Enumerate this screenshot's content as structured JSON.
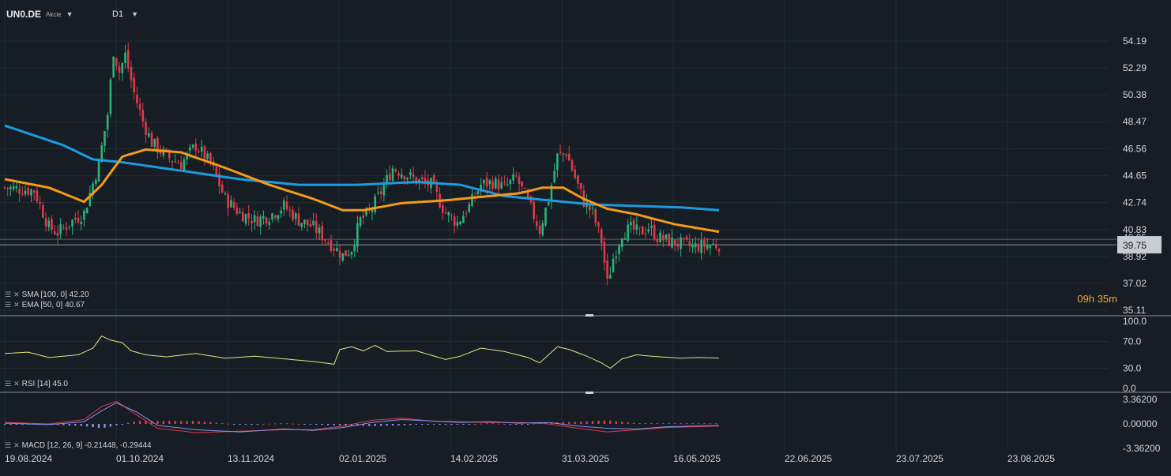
{
  "header": {
    "symbol": "UN0.DE",
    "security_type": "Akcie",
    "timeframe": "D1"
  },
  "colors": {
    "background": "#161d24",
    "grid": "#222c35",
    "up": "#2bb37a",
    "down": "#e03a4a",
    "sma": "#1e9be0",
    "ema": "#f29a1a",
    "rsi": "#e8e37a",
    "macd": "#8f8ff0",
    "signal": "#e03a4a",
    "countdown": "#f2a33a"
  },
  "legends": {
    "sma": "SMA [100, 0] 42.20",
    "ema": "EMA [50, 0] 40.67",
    "rsi": "RSI [14] 45.0",
    "macd": "MACD [12, 26, 9] -0.21448, -0.29444"
  },
  "countdown": {
    "hours": "09",
    "h": "h",
    "minutes": "35",
    "m": "m"
  },
  "price_axis": {
    "labels": [
      "54.19",
      "52.29",
      "50.38",
      "48.47",
      "46.56",
      "44.65",
      "42.74",
      "40.83",
      "38.92",
      "37.02",
      "35.11"
    ],
    "current": "39.75",
    "overlapped_partial": "40.05"
  },
  "rsi_axis": {
    "labels": [
      "100.0",
      "70.0",
      "30.0",
      "0.0"
    ]
  },
  "macd_axis": {
    "labels": [
      "3.36200",
      "0.00000",
      "-3.36200"
    ]
  },
  "chart_data": [
    {
      "type": "candlestick",
      "title": "UN0.DE",
      "ylim": [
        35.11,
        55.5
      ],
      "x_labels": [
        "19.08.2024",
        "01.10.2024",
        "13.11.2024",
        "02.01.2025",
        "14.02.2025",
        "31.03.2025",
        "16.05.2025",
        "22.06.2025",
        "23.07.2025",
        "23.08.2025"
      ],
      "close_path": [
        [
          0,
          43.8
        ],
        [
          10,
          43.6
        ],
        [
          15,
          41.0
        ],
        [
          18,
          40.6
        ],
        [
          22,
          41.3
        ],
        [
          27,
          42.0
        ],
        [
          32,
          45.5
        ],
        [
          35,
          49.0
        ],
        [
          37,
          53.5
        ],
        [
          39,
          52.0
        ],
        [
          41,
          53.2
        ],
        [
          44,
          50.5
        ],
        [
          47,
          48.5
        ],
        [
          50,
          47.0
        ],
        [
          55,
          46.0
        ],
        [
          60,
          45.5
        ],
        [
          65,
          46.8
        ],
        [
          70,
          45.5
        ],
        [
          75,
          43.0
        ],
        [
          80,
          42.0
        ],
        [
          85,
          41.5
        ],
        [
          90,
          41.8
        ],
        [
          95,
          42.5
        ],
        [
          100,
          41.5
        ],
        [
          105,
          41.0
        ],
        [
          110,
          40.0
        ],
        [
          115,
          39.0
        ],
        [
          118,
          39.5
        ],
        [
          121,
          41.5
        ],
        [
          124,
          42.0
        ],
        [
          128,
          43.5
        ],
        [
          132,
          45.2
        ],
        [
          136,
          44.8
        ],
        [
          140,
          44.3
        ],
        [
          145,
          44.0
        ],
        [
          150,
          42.0
        ],
        [
          154,
          41.3
        ],
        [
          158,
          42.5
        ],
        [
          162,
          44.0
        ],
        [
          166,
          44.2
        ],
        [
          170,
          43.8
        ],
        [
          174,
          44.5
        ],
        [
          178,
          42.8
        ],
        [
          182,
          40.8
        ],
        [
          185,
          43.0
        ],
        [
          188,
          46.0
        ],
        [
          191,
          46.3
        ],
        [
          194,
          44.5
        ],
        [
          197,
          42.8
        ],
        [
          200,
          42.0
        ],
        [
          203,
          40.0
        ],
        [
          205,
          37.0
        ],
        [
          207,
          38.8
        ],
        [
          210,
          40.6
        ],
        [
          213,
          40.9
        ],
        [
          216,
          40.6
        ],
        [
          219,
          41.0
        ],
        [
          222,
          40.3
        ],
        [
          226,
          40.0
        ],
        [
          230,
          39.8
        ],
        [
          234,
          39.6
        ],
        [
          238,
          39.7
        ],
        [
          243,
          39.75
        ]
      ],
      "series": [
        {
          "name": "SMA [100, 0]",
          "last": 42.2,
          "points": [
            [
              0,
              48.2
            ],
            [
              20,
              46.8
            ],
            [
              30,
              45.8
            ],
            [
              40,
              45.6
            ],
            [
              60,
              45.0
            ],
            [
              80,
              44.4
            ],
            [
              100,
              44.0
            ],
            [
              120,
              44.0
            ],
            [
              140,
              44.2
            ],
            [
              155,
              44.0
            ],
            [
              170,
              43.2
            ],
            [
              180,
              43.0
            ],
            [
              190,
              42.8
            ],
            [
              200,
              42.6
            ],
            [
              215,
              42.5
            ],
            [
              230,
              42.4
            ],
            [
              243,
              42.2
            ]
          ]
        },
        {
          "name": "EMA [50, 0]",
          "last": 40.67,
          "points": [
            [
              0,
              44.4
            ],
            [
              15,
              43.8
            ],
            [
              27,
              42.8
            ],
            [
              33,
              44.0
            ],
            [
              40,
              46.0
            ],
            [
              48,
              46.5
            ],
            [
              60,
              46.3
            ],
            [
              75,
              45.2
            ],
            [
              90,
              44.0
            ],
            [
              105,
              43.0
            ],
            [
              115,
              42.2
            ],
            [
              122,
              42.2
            ],
            [
              135,
              42.7
            ],
            [
              150,
              42.9
            ],
            [
              165,
              43.2
            ],
            [
              175,
              43.4
            ],
            [
              183,
              43.8
            ],
            [
              190,
              43.8
            ],
            [
              197,
              43.0
            ],
            [
              205,
              42.3
            ],
            [
              215,
              41.9
            ],
            [
              228,
              41.2
            ],
            [
              243,
              40.67
            ]
          ]
        }
      ]
    },
    {
      "type": "line",
      "title": "RSI [14]",
      "ylim": [
        0,
        100
      ],
      "series": [
        {
          "name": "RSI [14]",
          "last": 45.0,
          "points": [
            [
              0,
              52
            ],
            [
              8,
              54
            ],
            [
              15,
              46
            ],
            [
              20,
              48
            ],
            [
              25,
              50
            ],
            [
              30,
              60
            ],
            [
              33,
              78
            ],
            [
              36,
              72
            ],
            [
              40,
              68
            ],
            [
              43,
              56
            ],
            [
              48,
              50
            ],
            [
              55,
              47
            ],
            [
              65,
              52
            ],
            [
              75,
              45
            ],
            [
              85,
              48
            ],
            [
              95,
              44
            ],
            [
              105,
              40
            ],
            [
              112,
              36
            ],
            [
              114,
              58
            ],
            [
              118,
              62
            ],
            [
              122,
              56
            ],
            [
              126,
              64
            ],
            [
              130,
              55
            ],
            [
              140,
              56
            ],
            [
              150,
              43
            ],
            [
              155,
              48
            ],
            [
              162,
              60
            ],
            [
              170,
              55
            ],
            [
              178,
              46
            ],
            [
              182,
              38
            ],
            [
              188,
              62
            ],
            [
              192,
              58
            ],
            [
              198,
              48
            ],
            [
              203,
              38
            ],
            [
              206,
              30
            ],
            [
              210,
              44
            ],
            [
              215,
              50
            ],
            [
              220,
              48
            ],
            [
              230,
              45
            ],
            [
              236,
              46
            ],
            [
              243,
              45
            ]
          ]
        }
      ]
    },
    {
      "type": "bar",
      "title": "MACD [12, 26, 9]",
      "ylim": [
        -3.362,
        3.362
      ],
      "series": [
        {
          "name": "MACD",
          "last": -0.21448,
          "points": [
            [
              0,
              0.1
            ],
            [
              15,
              -0.1
            ],
            [
              27,
              0.3
            ],
            [
              33,
              1.8
            ],
            [
              38,
              2.9
            ],
            [
              45,
              1.6
            ],
            [
              52,
              -0.2
            ],
            [
              65,
              -0.8
            ],
            [
              80,
              -1.1
            ],
            [
              95,
              -0.7
            ],
            [
              105,
              -0.9
            ],
            [
              115,
              -0.5
            ],
            [
              125,
              0.2
            ],
            [
              135,
              0.6
            ],
            [
              145,
              0.4
            ],
            [
              155,
              0.2
            ],
            [
              165,
              0.3
            ],
            [
              175,
              0.1
            ],
            [
              185,
              0.2
            ],
            [
              195,
              -0.3
            ],
            [
              205,
              -0.6
            ],
            [
              215,
              -0.7
            ],
            [
              225,
              -0.4
            ],
            [
              243,
              -0.21448
            ]
          ]
        },
        {
          "name": "Signal",
          "last": -0.29444,
          "points": [
            [
              0,
              0.2
            ],
            [
              15,
              0.0
            ],
            [
              27,
              0.6
            ],
            [
              33,
              2.4
            ],
            [
              38,
              3.1
            ],
            [
              45,
              1.2
            ],
            [
              52,
              -0.6
            ],
            [
              65,
              -1.2
            ],
            [
              80,
              -1.0
            ],
            [
              95,
              -0.8
            ],
            [
              105,
              -0.8
            ],
            [
              115,
              -0.3
            ],
            [
              125,
              0.5
            ],
            [
              135,
              0.8
            ],
            [
              145,
              0.4
            ],
            [
              155,
              0.3
            ],
            [
              165,
              0.2
            ],
            [
              175,
              0.2
            ],
            [
              185,
              0.0
            ],
            [
              195,
              -0.6
            ],
            [
              205,
              -1.1
            ],
            [
              215,
              -0.8
            ],
            [
              225,
              -0.5
            ],
            [
              243,
              -0.29444
            ]
          ]
        }
      ]
    }
  ]
}
